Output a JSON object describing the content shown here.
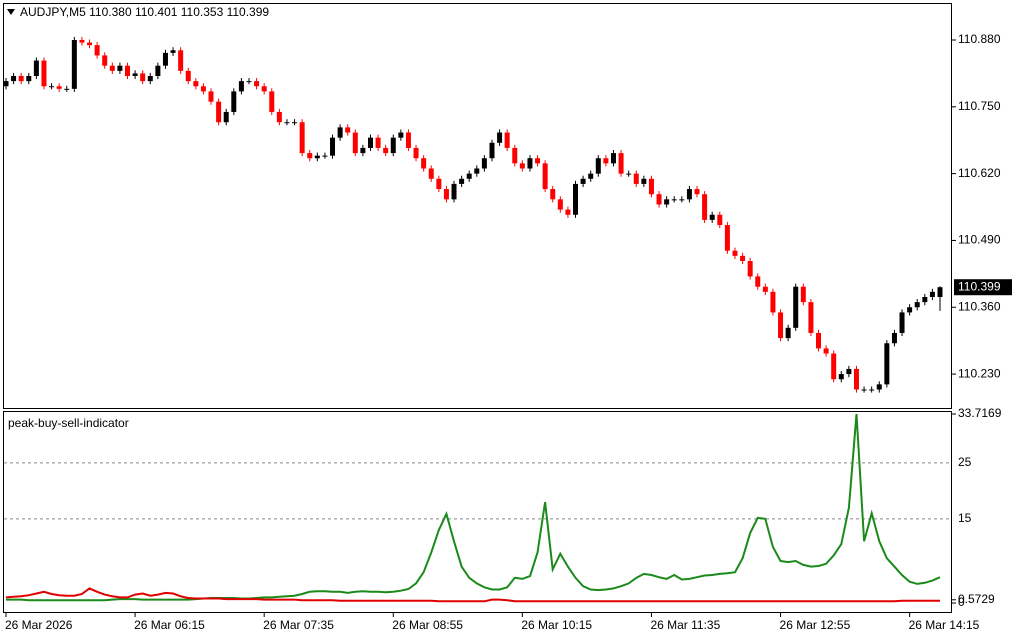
{
  "chart_data": [
    {
      "type": "candlestick",
      "title": "AUDJPY,M5 110.380 110.401 110.353 110.399",
      "up_color": "#000000",
      "down_color": "#ff0000",
      "ylim": [
        110.164,
        110.952
      ],
      "yticks": [
        {
          "value": 110.88,
          "label": "110.880"
        },
        {
          "value": 110.75,
          "label": "110.750"
        },
        {
          "value": 110.62,
          "label": "110.620"
        },
        {
          "value": 110.49,
          "label": "110.490"
        },
        {
          "value": 110.36,
          "label": "110.360"
        },
        {
          "value": 110.23,
          "label": "110.230"
        }
      ],
      "current_price": {
        "value": 110.399,
        "label": "110.399"
      },
      "open": [
        110.79,
        110.8,
        110.81,
        110.8,
        110.81,
        110.84,
        110.79,
        110.79,
        110.785,
        110.785,
        110.88,
        110.875,
        110.87,
        110.85,
        110.83,
        110.82,
        110.83,
        110.81,
        110.815,
        110.8,
        110.81,
        110.83,
        110.855,
        110.86,
        110.82,
        110.8,
        110.79,
        110.78,
        110.76,
        110.72,
        110.74,
        110.78,
        110.8,
        110.8,
        110.79,
        110.78,
        110.74,
        110.72,
        110.72,
        110.72,
        110.66,
        110.65,
        110.655,
        110.655,
        110.69,
        110.71,
        110.7,
        110.66,
        110.67,
        110.69,
        110.67,
        110.66,
        110.69,
        110.7,
        110.67,
        110.65,
        110.63,
        110.61,
        110.59,
        110.57,
        110.6,
        110.61,
        110.62,
        110.63,
        110.65,
        110.68,
        110.7,
        110.67,
        110.64,
        110.63,
        110.65,
        110.64,
        110.59,
        110.57,
        110.55,
        110.54,
        110.6,
        110.61,
        110.62,
        110.65,
        110.64,
        110.66,
        110.62,
        110.62,
        110.6,
        110.61,
        110.58,
        110.56,
        110.57,
        110.57,
        110.57,
        110.59,
        110.58,
        110.53,
        110.54,
        110.52,
        110.47,
        110.46,
        110.45,
        110.42,
        110.4,
        110.39,
        110.35,
        110.3,
        110.32,
        110.4,
        110.37,
        110.31,
        110.28,
        110.27,
        110.22,
        110.23,
        110.24,
        110.2,
        110.2,
        110.2,
        110.21,
        110.29,
        110.31,
        110.35,
        110.36,
        110.37,
        110.38,
        110.38
      ],
      "high": [
        110.806,
        110.816,
        110.816,
        110.816,
        110.846,
        110.846,
        110.796,
        110.796,
        110.791,
        110.886,
        110.886,
        110.881,
        110.876,
        110.856,
        110.836,
        110.836,
        110.836,
        110.821,
        110.821,
        110.816,
        110.836,
        110.861,
        110.866,
        110.866,
        110.826,
        110.806,
        110.796,
        110.786,
        110.766,
        110.746,
        110.786,
        110.806,
        110.806,
        110.806,
        110.796,
        110.786,
        110.746,
        110.726,
        110.726,
        110.726,
        110.666,
        110.661,
        110.661,
        110.696,
        110.716,
        110.716,
        110.706,
        110.676,
        110.696,
        110.696,
        110.676,
        110.696,
        110.706,
        110.706,
        110.676,
        110.656,
        110.636,
        110.616,
        110.596,
        110.606,
        110.616,
        110.626,
        110.636,
        110.656,
        110.686,
        110.706,
        110.706,
        110.676,
        110.646,
        110.656,
        110.656,
        110.646,
        110.596,
        110.576,
        110.556,
        110.606,
        110.616,
        110.626,
        110.656,
        110.656,
        110.666,
        110.666,
        110.626,
        110.626,
        110.616,
        110.616,
        110.586,
        110.576,
        110.576,
        110.576,
        110.596,
        110.596,
        110.586,
        110.546,
        110.546,
        110.526,
        110.476,
        110.466,
        110.456,
        110.426,
        110.406,
        110.396,
        110.356,
        110.326,
        110.406,
        110.406,
        110.376,
        110.316,
        110.286,
        110.276,
        110.236,
        110.246,
        110.246,
        110.206,
        110.206,
        110.216,
        110.296,
        110.316,
        110.356,
        110.366,
        110.376,
        110.386,
        110.396,
        110.401
      ],
      "low": [
        110.784,
        110.794,
        110.794,
        110.794,
        110.804,
        110.784,
        110.784,
        110.779,
        110.779,
        110.779,
        110.869,
        110.864,
        110.844,
        110.824,
        110.814,
        110.814,
        110.804,
        110.804,
        110.794,
        110.794,
        110.804,
        110.824,
        110.849,
        110.814,
        110.794,
        110.784,
        110.774,
        110.754,
        110.714,
        110.714,
        110.734,
        110.774,
        110.794,
        110.784,
        110.774,
        110.734,
        110.714,
        110.714,
        110.714,
        110.654,
        110.644,
        110.644,
        110.649,
        110.649,
        110.684,
        110.694,
        110.654,
        110.654,
        110.664,
        110.664,
        110.654,
        110.654,
        110.684,
        110.664,
        110.644,
        110.624,
        110.604,
        110.584,
        110.564,
        110.564,
        110.594,
        110.604,
        110.614,
        110.624,
        110.644,
        110.674,
        110.664,
        110.634,
        110.624,
        110.624,
        110.634,
        110.584,
        110.564,
        110.544,
        110.534,
        110.534,
        110.594,
        110.604,
        110.614,
        110.634,
        110.634,
        110.614,
        110.614,
        110.594,
        110.594,
        110.574,
        110.554,
        110.554,
        110.564,
        110.564,
        110.564,
        110.574,
        110.524,
        110.524,
        110.514,
        110.464,
        110.454,
        110.444,
        110.414,
        110.394,
        110.384,
        110.344,
        110.294,
        110.294,
        110.314,
        110.364,
        110.304,
        110.274,
        110.264,
        110.214,
        110.214,
        110.224,
        110.194,
        110.194,
        110.194,
        110.194,
        110.204,
        110.284,
        110.304,
        110.344,
        110.354,
        110.364,
        110.374,
        110.353
      ],
      "close": [
        110.8,
        110.81,
        110.8,
        110.81,
        110.84,
        110.79,
        110.79,
        110.785,
        110.785,
        110.88,
        110.875,
        110.87,
        110.85,
        110.83,
        110.82,
        110.83,
        110.81,
        110.815,
        110.8,
        110.81,
        110.83,
        110.855,
        110.86,
        110.82,
        110.8,
        110.79,
        110.78,
        110.76,
        110.72,
        110.74,
        110.78,
        110.8,
        110.8,
        110.79,
        110.78,
        110.74,
        110.72,
        110.72,
        110.72,
        110.66,
        110.65,
        110.655,
        110.655,
        110.69,
        110.71,
        110.7,
        110.66,
        110.67,
        110.69,
        110.67,
        110.66,
        110.69,
        110.7,
        110.67,
        110.65,
        110.63,
        110.61,
        110.59,
        110.57,
        110.6,
        110.61,
        110.62,
        110.63,
        110.65,
        110.68,
        110.7,
        110.67,
        110.64,
        110.63,
        110.65,
        110.64,
        110.59,
        110.57,
        110.55,
        110.54,
        110.6,
        110.61,
        110.62,
        110.65,
        110.64,
        110.66,
        110.62,
        110.62,
        110.6,
        110.61,
        110.58,
        110.56,
        110.57,
        110.57,
        110.57,
        110.59,
        110.58,
        110.53,
        110.54,
        110.52,
        110.47,
        110.46,
        110.45,
        110.42,
        110.4,
        110.39,
        110.35,
        110.3,
        110.32,
        110.4,
        110.37,
        110.31,
        110.28,
        110.27,
        110.22,
        110.23,
        110.24,
        110.2,
        110.2,
        110.2,
        110.21,
        110.29,
        110.31,
        110.35,
        110.36,
        110.37,
        110.38,
        110.39,
        110.399
      ]
    },
    {
      "type": "line",
      "title": "peak-buy-sell-indicator",
      "ylim": [
        0,
        33.7169
      ],
      "yticks": [
        33.7169,
        0.5729,
        0
      ],
      "levels": [
        25,
        15
      ],
      "xticks": [
        {
          "value": 0,
          "label": "26 Mar 2026"
        },
        {
          "value": 17,
          "label": "26 Mar 06:15"
        },
        {
          "value": 34,
          "label": "26 Mar 07:35"
        },
        {
          "value": 51,
          "label": "26 Mar 08:55"
        },
        {
          "value": 68,
          "label": "26 Mar 10:15"
        },
        {
          "value": 85,
          "label": "26 Mar 11:35"
        },
        {
          "value": 102,
          "label": "26 Mar 12:55"
        },
        {
          "value": 119,
          "label": "26 Mar 14:15"
        }
      ],
      "series": [
        {
          "color": "#1a8a1a",
          "values": [
            0.6,
            0.6,
            0.6,
            0.5,
            0.5,
            0.5,
            0.5,
            0.5,
            0.5,
            0.5,
            0.5,
            0.5,
            0.5,
            0.5,
            0.6,
            0.7,
            0.7,
            0.7,
            0.6,
            0.6,
            0.6,
            0.6,
            0.6,
            0.6,
            0.6,
            0.7,
            0.8,
            0.9,
            0.9,
            0.9,
            0.9,
            0.8,
            0.8,
            0.9,
            1.0,
            1.0,
            1.1,
            1.2,
            1.3,
            1.6,
            2.0,
            2.1,
            2.1,
            2.0,
            2.0,
            1.8,
            2.0,
            2.1,
            2.0,
            2.0,
            1.9,
            2.0,
            2.2,
            2.5,
            3.5,
            5.5,
            9.0,
            13.0,
            15.9,
            11.0,
            6.5,
            4.5,
            3.5,
            2.8,
            2.4,
            2.4,
            2.8,
            4.5,
            4.3,
            4.8,
            9.0,
            18.0,
            6.0,
            8.8,
            6.5,
            4.5,
            3.0,
            2.4,
            2.3,
            2.4,
            2.6,
            3.0,
            3.5,
            4.5,
            5.2,
            5.0,
            4.6,
            4.3,
            5.0,
            4.2,
            4.3,
            4.6,
            4.9,
            5.0,
            5.2,
            5.3,
            5.5,
            8.0,
            12.5,
            15.2,
            15.0,
            10.0,
            7.5,
            7.3,
            7.5,
            6.8,
            6.5,
            6.6,
            7.0,
            8.5,
            10.5,
            17.0,
            33.7169,
            11.0,
            16.0,
            11.0,
            8.0,
            6.5,
            5.0,
            3.8,
            3.4,
            3.6,
            4.0,
            4.6
          ]
        },
        {
          "color": "#e00000",
          "values": [
            1.0,
            1.1,
            1.2,
            1.4,
            1.7,
            2.0,
            1.6,
            1.4,
            1.3,
            1.3,
            1.6,
            2.6,
            2.0,
            1.5,
            1.2,
            1.0,
            1.0,
            1.5,
            1.7,
            1.3,
            1.5,
            1.8,
            1.7,
            1.2,
            0.9,
            0.8,
            0.8,
            0.8,
            0.8,
            0.7,
            0.7,
            0.7,
            0.7,
            0.7,
            0.6,
            0.6,
            0.6,
            0.6,
            0.6,
            0.5,
            0.5,
            0.5,
            0.5,
            0.5,
            0.4,
            0.4,
            0.4,
            0.4,
            0.4,
            0.4,
            0.4,
            0.4,
            0.4,
            0.4,
            0.4,
            0.4,
            0.4,
            0.3,
            0.3,
            0.3,
            0.3,
            0.3,
            0.3,
            0.3,
            0.6,
            0.6,
            0.5,
            0.3,
            0.3,
            0.3,
            0.3,
            0.3,
            0.3,
            0.3,
            0.3,
            0.3,
            0.3,
            0.3,
            0.3,
            0.3,
            0.3,
            0.3,
            0.3,
            0.3,
            0.3,
            0.3,
            0.3,
            0.3,
            0.3,
            0.3,
            0.3,
            0.3,
            0.3,
            0.3,
            0.3,
            0.3,
            0.3,
            0.3,
            0.3,
            0.3,
            0.3,
            0.3,
            0.3,
            0.3,
            0.3,
            0.3,
            0.3,
            0.3,
            0.3,
            0.3,
            0.3,
            0.3,
            0.3,
            0.3,
            0.3,
            0.3,
            0.3,
            0.3,
            0.4,
            0.4,
            0.4,
            0.4,
            0.4,
            0.4
          ]
        }
      ]
    }
  ]
}
